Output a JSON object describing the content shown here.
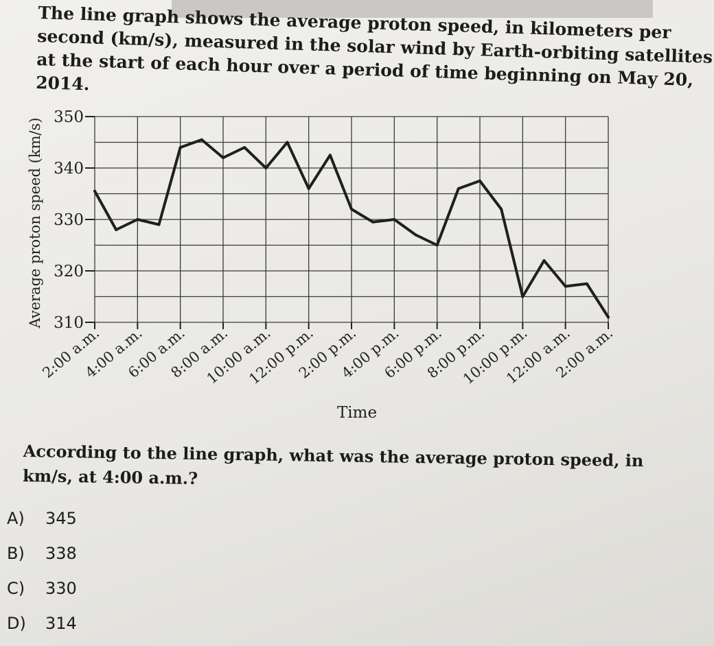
{
  "intro_lines": [
    "The line graph shows the average proton speed, in kilometers per",
    "second (km/s), measured in the solar wind by Earth-orbiting satellites",
    "at the start of each hour over a period of time beginning on May 20,",
    "2014."
  ],
  "chart_data": {
    "type": "line",
    "title": "",
    "xlabel": "Time",
    "ylabel": "Average proton speed (km/s)",
    "ylim": [
      310,
      350
    ],
    "y_ticks": [
      310,
      320,
      330,
      340,
      350
    ],
    "x_tick_labels": [
      "2:00 a.m.",
      "4:00 a.m.",
      "6:00 a.m.",
      "8:00 a.m.",
      "10:00 a.m.",
      "12:00 p.m.",
      "2:00 p.m.",
      "4:00 p.m.",
      "6:00 p.m.",
      "8:00 p.m.",
      "10:00 p.m.",
      "12:00 a.m.",
      "2:00 a.m."
    ],
    "grid": true,
    "series": [
      {
        "values": [
          335.5,
          328,
          330,
          329,
          344,
          345.5,
          342,
          344,
          340,
          345,
          336,
          342.5,
          332,
          329.5,
          330,
          327,
          325,
          336,
          337.5,
          332,
          315,
          322,
          317,
          317.5,
          311
        ]
      }
    ]
  },
  "question_lines": [
    "According to the line graph, what was the average proton speed, in",
    "km/s, at 4:00 a.m.?"
  ],
  "choices": [
    {
      "letter": "A)",
      "text": "345"
    },
    {
      "letter": "B)",
      "text": "338"
    },
    {
      "letter": "C)",
      "text": "330"
    },
    {
      "letter": "D)",
      "text": "314"
    }
  ]
}
